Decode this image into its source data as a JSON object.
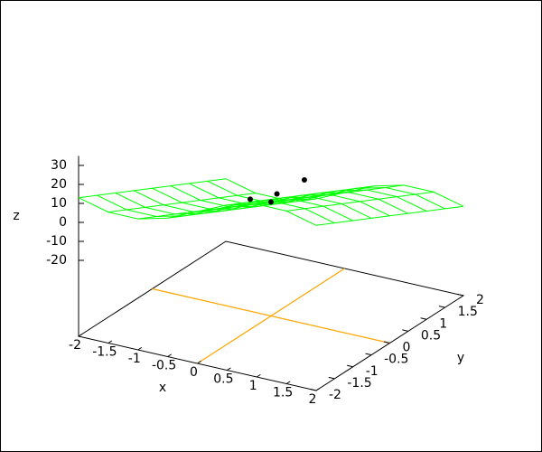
{
  "chart_data": {
    "type": "surface3d",
    "xlabel": "x",
    "ylabel": "y",
    "zlabel": "z",
    "xlim": [
      -2,
      2
    ],
    "ylim": [
      -2,
      2
    ],
    "zlim": [
      -20,
      35
    ],
    "xticks": [
      -2,
      -1.5,
      -1,
      -0.5,
      0,
      0.5,
      1,
      1.5,
      2
    ],
    "yticks": [
      -2,
      -1.5,
      -1,
      -0.5,
      0,
      0.5,
      1,
      1.5,
      2
    ],
    "zticks": [
      -20,
      -10,
      0,
      10,
      20,
      30
    ],
    "zeroaxis": true,
    "zeroaxis_color": "#ffa500",
    "surface": {
      "color": "#00ff00",
      "x": [
        -2,
        -1.5,
        -1,
        -0.5,
        0,
        0.5,
        1,
        1.5,
        2
      ],
      "y": [
        -2,
        -1.5,
        -1,
        -0.5,
        0,
        0.5,
        1,
        1.5,
        2
      ],
      "z": [
        [
          13,
          9,
          9,
          13,
          20,
          27,
          31,
          31,
          27
        ],
        [
          8,
          4,
          4,
          8,
          15,
          22,
          26,
          26,
          22
        ],
        [
          3,
          -1,
          -1,
          3,
          10,
          17,
          21,
          21,
          17
        ],
        [
          -2,
          -6,
          -6,
          -2,
          5,
          12,
          16,
          16,
          12
        ],
        [
          -7,
          -11,
          -11,
          -7,
          0,
          7,
          11,
          11,
          7
        ],
        [
          -12,
          -16,
          -16,
          -12,
          -5,
          2,
          6,
          6,
          2
        ],
        [
          -17,
          -21,
          -21,
          -17,
          -10,
          -3,
          1,
          1,
          -3
        ],
        [
          -22,
          -26,
          -26,
          -22,
          -15,
          -8,
          -4,
          -4,
          -8
        ],
        [
          -27,
          -31,
          -31,
          -27,
          -20,
          -13,
          -9,
          -9,
          -13
        ]
      ]
    },
    "points": {
      "color": "#000000",
      "x": [
        -0.35,
        0,
        0.1,
        0.5
      ],
      "y": [
        0,
        0,
        0,
        0.1
      ],
      "z": [
        -1,
        0,
        5,
        14
      ]
    }
  }
}
